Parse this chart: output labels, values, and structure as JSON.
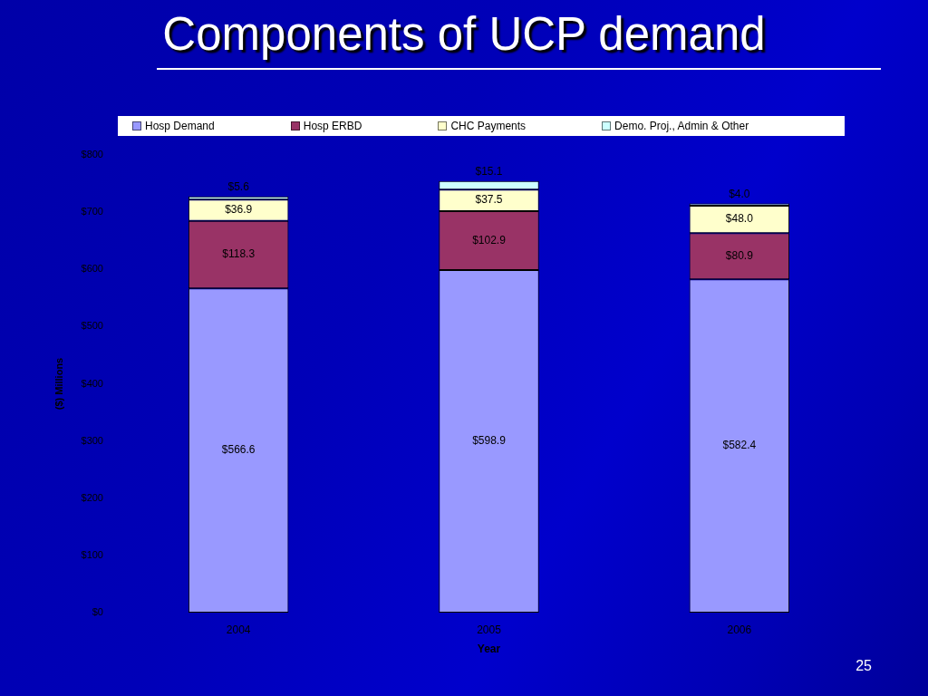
{
  "chart_data": {
    "type": "bar",
    "title": "Components of UCP demand",
    "xlabel": "Year",
    "ylabel": "($) Millions",
    "categories": [
      "2004",
      "2005",
      "2006"
    ],
    "stacked": true,
    "series": [
      {
        "name": "Hosp Demand",
        "color": "#9999ff",
        "values": [
          566.6,
          598.9,
          582.4
        ],
        "value_labels": [
          "$566.6",
          "$598.9",
          "$582.4"
        ]
      },
      {
        "name": "Hosp ERBD",
        "color": "#993366",
        "values": [
          118.3,
          102.9,
          80.9
        ],
        "value_labels": [
          "$118.3",
          "$102.9",
          "$80.9"
        ]
      },
      {
        "name": "CHC Payments",
        "color": "#ffffcc",
        "values": [
          36.9,
          37.5,
          48.0
        ],
        "value_labels": [
          "$36.9",
          "$37.5",
          "$48.0"
        ]
      },
      {
        "name": "Demo. Proj., Admin & Other",
        "color": "#ccffff",
        "values": [
          5.6,
          15.1,
          4.0
        ],
        "value_labels": [
          "$5.6",
          "$15.1",
          "$4.0"
        ]
      }
    ],
    "ylim": [
      0,
      800
    ],
    "yticks": [
      {
        "value": 0,
        "label": "$0"
      },
      {
        "value": 100,
        "label": "$100"
      },
      {
        "value": 200,
        "label": "$200"
      },
      {
        "value": 300,
        "label": "$300"
      },
      {
        "value": 400,
        "label": "$400"
      },
      {
        "value": 500,
        "label": "$500"
      },
      {
        "value": 600,
        "label": "$600"
      },
      {
        "value": 700,
        "label": "$700"
      },
      {
        "value": 800,
        "label": "$800"
      }
    ],
    "grid": false,
    "legend": "top",
    "annotations": [
      "25"
    ]
  }
}
